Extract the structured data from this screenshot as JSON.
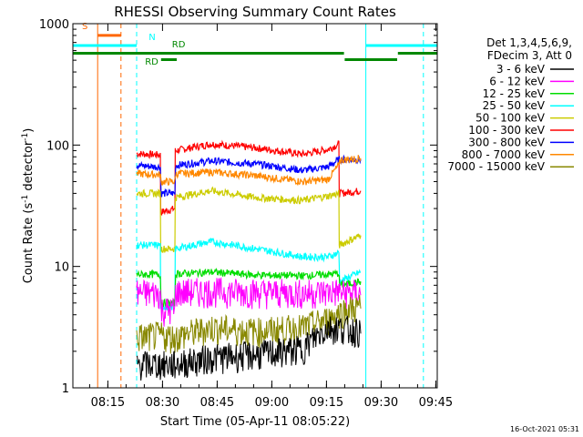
{
  "chart_data": {
    "type": "line",
    "title": "RHESSI Observing Summary Count Rates",
    "xlabel": "Start Time (05-Apr-11 08:05:22)",
    "ylabel_main": "Count Rate (s",
    "ylabel_sup1": "-1",
    "ylabel_mid": " detector",
    "ylabel_sup2": "-1",
    "ylabel_end": ")",
    "y_scale": "log",
    "ylim": [
      1,
      1000
    ],
    "xlim_minutes": [
      0,
      100
    ],
    "x_ticks": [
      {
        "label": "08:15",
        "minutes": 9.6
      },
      {
        "label": "08:30",
        "minutes": 24.6
      },
      {
        "label": "08:45",
        "minutes": 39.6
      },
      {
        "label": "09:00",
        "minutes": 54.6
      },
      {
        "label": "09:15",
        "minutes": 69.6
      },
      {
        "label": "09:30",
        "minutes": 84.6
      },
      {
        "label": "09:45",
        "minutes": 99.6
      }
    ],
    "y_ticks": [
      {
        "label": "1",
        "value": 1
      },
      {
        "label": "10",
        "value": 10
      },
      {
        "label": "100",
        "value": 100
      },
      {
        "label": "1000",
        "value": 1000
      }
    ],
    "legend": {
      "placement": "right",
      "header": [
        "Det 1,3,4,5,6,9,",
        "FDecim 3, Att 0"
      ],
      "entries": [
        {
          "name": "3 - 6 keV",
          "color": "#000000"
        },
        {
          "name": "6 - 12 keV",
          "color": "#ff00ff"
        },
        {
          "name": "12 - 25 keV",
          "color": "#00dd00"
        },
        {
          "name": "25 - 50 keV",
          "color": "#00ffff"
        },
        {
          "name": "50 - 100 keV",
          "color": "#cccc00"
        },
        {
          "name": "100 - 300 keV",
          "color": "#ff0000"
        },
        {
          "name": "300 - 800 keV",
          "color": "#0000ff"
        },
        {
          "name": "800 - 7000 keV",
          "color": "#ff8800"
        },
        {
          "name": "7000 - 15000 keV",
          "color": "#888800"
        }
      ]
    },
    "series": [
      {
        "name": "100 - 300 keV",
        "color": "#ff0000",
        "points": [
          [
            17.5,
            85
          ],
          [
            24,
            83
          ],
          [
            24.2,
            28
          ],
          [
            28,
            30
          ],
          [
            28.2,
            90
          ],
          [
            38,
            102
          ],
          [
            50,
            95
          ],
          [
            63,
            84
          ],
          [
            70,
            92
          ],
          [
            73,
            102
          ],
          [
            73.2,
            40
          ],
          [
            79,
            42
          ]
        ]
      },
      {
        "name": "300 - 800 keV",
        "color": "#0000ff",
        "points": [
          [
            17.5,
            68
          ],
          [
            24,
            66
          ],
          [
            24.2,
            40
          ],
          [
            28,
            40
          ],
          [
            28.2,
            68
          ],
          [
            38,
            74
          ],
          [
            50,
            70
          ],
          [
            63,
            62
          ],
          [
            70,
            66
          ],
          [
            73,
            76
          ],
          [
            73.2,
            76
          ],
          [
            79,
            76
          ]
        ]
      },
      {
        "name": "800 - 7000 keV",
        "color": "#ff8800",
        "points": [
          [
            17.5,
            58
          ],
          [
            24,
            57
          ],
          [
            24.2,
            50
          ],
          [
            28,
            50
          ],
          [
            28.2,
            58
          ],
          [
            38,
            60
          ],
          [
            50,
            56
          ],
          [
            63,
            50
          ],
          [
            70,
            52
          ],
          [
            73,
            68
          ],
          [
            73.2,
            75
          ],
          [
            79,
            78
          ]
        ]
      },
      {
        "name": "50 - 100 keV",
        "color": "#cccc00",
        "points": [
          [
            17.5,
            40
          ],
          [
            24,
            40
          ],
          [
            24.2,
            14
          ],
          [
            28,
            14
          ],
          [
            28.2,
            37
          ],
          [
            38,
            42
          ],
          [
            50,
            37
          ],
          [
            63,
            35
          ],
          [
            70,
            38
          ],
          [
            73,
            40
          ],
          [
            73.2,
            15
          ],
          [
            79,
            18
          ]
        ]
      },
      {
        "name": "25 - 50 keV",
        "color": "#00ffff",
        "points": [
          [
            17.5,
            15
          ],
          [
            24,
            15
          ],
          [
            24.2,
            4.7
          ],
          [
            28,
            4.7
          ],
          [
            28.2,
            14
          ],
          [
            38,
            16
          ],
          [
            50,
            14
          ],
          [
            63,
            12
          ],
          [
            70,
            12
          ],
          [
            73,
            13
          ],
          [
            73.2,
            7.5
          ],
          [
            79,
            9
          ]
        ]
      },
      {
        "name": "12 - 25 keV",
        "color": "#00dd00",
        "points": [
          [
            17.5,
            8.6
          ],
          [
            24,
            8.6
          ],
          [
            24.2,
            5
          ],
          [
            28,
            5
          ],
          [
            28.2,
            8.7
          ],
          [
            38,
            9
          ],
          [
            50,
            8.5
          ],
          [
            63,
            8.4
          ],
          [
            70,
            8.6
          ],
          [
            73,
            8.8
          ],
          [
            73.2,
            7
          ],
          [
            79,
            7.5
          ]
        ]
      },
      {
        "name": "6 - 12 keV",
        "color": "#ff00ff",
        "points": [
          [
            17.5,
            5.8
          ],
          [
            24,
            5.8
          ],
          [
            24.2,
            4.2
          ],
          [
            28,
            4.2
          ],
          [
            28.2,
            5.9
          ],
          [
            38,
            6
          ],
          [
            50,
            5.9
          ],
          [
            63,
            5.8
          ],
          [
            70,
            5.9
          ],
          [
            73,
            6
          ],
          [
            73.2,
            5.8
          ],
          [
            79,
            5.8
          ]
        ]
      },
      {
        "name": "7000 - 15000 keV",
        "color": "#888800",
        "points": [
          [
            17.5,
            2.5
          ],
          [
            24,
            2.6
          ],
          [
            28,
            2.5
          ],
          [
            38,
            3
          ],
          [
            50,
            2.8
          ],
          [
            63,
            3
          ],
          [
            70,
            3.5
          ],
          [
            73,
            4
          ],
          [
            79,
            4.5
          ]
        ]
      },
      {
        "name": "3 - 6 keV",
        "color": "#000000",
        "points": [
          [
            17.5,
            1.5
          ],
          [
            24,
            1.5
          ],
          [
            28,
            1.5
          ],
          [
            38,
            1.7
          ],
          [
            50,
            1.8
          ],
          [
            63,
            2
          ],
          [
            70,
            3
          ],
          [
            73,
            3
          ],
          [
            79,
            2.8
          ]
        ]
      }
    ],
    "annotations": {
      "boxes": [
        {
          "label": "S",
          "color": "#ff6600",
          "start": 6.8,
          "end": 13.2,
          "level": 800
        },
        {
          "label": "N",
          "color": "#00ffff",
          "start": 0,
          "end": 17.5,
          "level": 660
        },
        {
          "label": "N",
          "color": "#00ffff",
          "start": 80.4,
          "end": 100,
          "level": 660
        },
        {
          "label": "RD",
          "color": "#008800",
          "start": 0,
          "end": 74.4,
          "level": 570
        },
        {
          "label": "RD",
          "color": "#008800",
          "start": 74.6,
          "end": 89,
          "level": 505
        },
        {
          "label": "RD",
          "color": "#008800",
          "start": 89.2,
          "end": 100,
          "level": 570
        },
        {
          "label": "RD",
          "color": "#008800",
          "start": 24.2,
          "end": 28.5,
          "level": 505
        }
      ],
      "labels": [
        {
          "text": "S",
          "color": "#ff6600",
          "minutes": 2.5,
          "value": 900
        },
        {
          "text": "N",
          "color": "#00ffff",
          "minutes": 20.8,
          "value": 730
        },
        {
          "text": "RD",
          "color": "#008800",
          "minutes": 27.2,
          "value": 640
        },
        {
          "text": "RD",
          "color": "#008800",
          "minutes": 19.8,
          "value": 460
        }
      ],
      "vlines": [
        {
          "minutes": 6.8,
          "color": "#ff6600",
          "style": "solid"
        },
        {
          "minutes": 13.2,
          "color": "#ff6600",
          "style": "dashed"
        },
        {
          "minutes": 17.5,
          "color": "#00ffff",
          "style": "dashed"
        },
        {
          "minutes": 80.4,
          "color": "#00ffff",
          "style": "solid"
        },
        {
          "minutes": 96.2,
          "color": "#00ffff",
          "style": "dashed"
        }
      ]
    },
    "footer_date": "16-Oct-2021 05:31"
  }
}
